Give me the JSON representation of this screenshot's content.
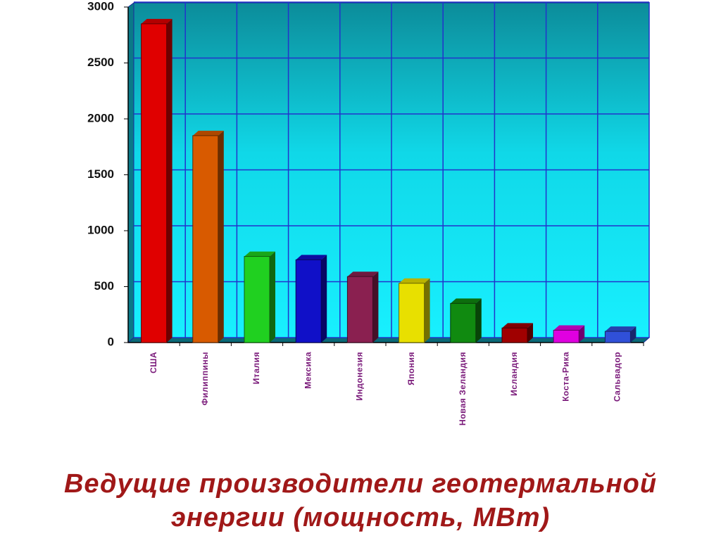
{
  "chart_data": {
    "type": "bar",
    "title": [
      "Ведущие производители геотермальной",
      "энергии (мощность, МВт)"
    ],
    "categories": [
      "США",
      "Филиппины",
      "Италия",
      "Мексика",
      "Индонезия",
      "Япония",
      "Новая Зеландия",
      "Исландия",
      "Коста-Рика",
      "Сальвадор"
    ],
    "values": [
      2850,
      1850,
      770,
      740,
      590,
      530,
      350,
      130,
      110,
      100
    ],
    "colors": [
      "#e00000",
      "#d85a00",
      "#20d020",
      "#1010c8",
      "#8a2050",
      "#e8e000",
      "#108a10",
      "#a00000",
      "#e000e0",
      "#3050d8"
    ],
    "ylim": [
      0,
      3000
    ],
    "yticks": [
      0,
      500,
      1000,
      1500,
      2000,
      2500,
      3000
    ],
    "grid": true
  }
}
